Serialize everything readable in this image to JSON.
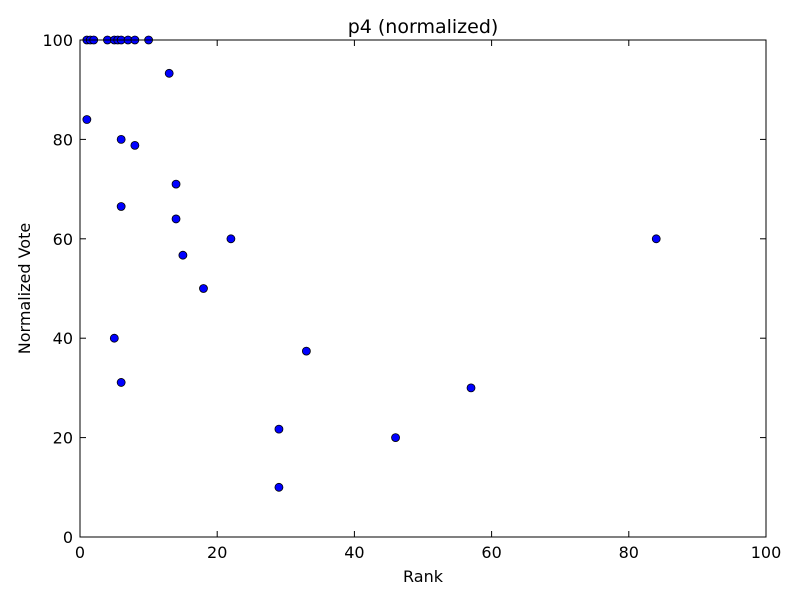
{
  "chart_data": {
    "type": "scatter",
    "title": "p4 (normalized)",
    "xlabel": "Rank",
    "ylabel": "Normalized Vote",
    "xlim": [
      0,
      100
    ],
    "ylim": [
      0,
      100
    ],
    "xticks": [
      "0",
      "20",
      "40",
      "60",
      "80",
      "100"
    ],
    "yticks": [
      "0",
      "20",
      "40",
      "60",
      "80",
      "100"
    ],
    "grid": false,
    "marker_color": "#0000ff",
    "marker_edge_color": "#000000",
    "points": [
      {
        "x": 1,
        "y": 100
      },
      {
        "x": 1.5,
        "y": 100
      },
      {
        "x": 2,
        "y": 100
      },
      {
        "x": 4,
        "y": 100
      },
      {
        "x": 5,
        "y": 100
      },
      {
        "x": 5.5,
        "y": 100
      },
      {
        "x": 6,
        "y": 100
      },
      {
        "x": 7,
        "y": 100
      },
      {
        "x": 8,
        "y": 100
      },
      {
        "x": 10,
        "y": 100
      },
      {
        "x": 13,
        "y": 93.3
      },
      {
        "x": 1,
        "y": 84
      },
      {
        "x": 6,
        "y": 80
      },
      {
        "x": 8,
        "y": 78.8
      },
      {
        "x": 14,
        "y": 71
      },
      {
        "x": 6,
        "y": 66.5
      },
      {
        "x": 14,
        "y": 64
      },
      {
        "x": 22,
        "y": 60
      },
      {
        "x": 84,
        "y": 60
      },
      {
        "x": 15,
        "y": 56.7
      },
      {
        "x": 18,
        "y": 50
      },
      {
        "x": 5,
        "y": 40
      },
      {
        "x": 33,
        "y": 37.4
      },
      {
        "x": 6,
        "y": 31.1
      },
      {
        "x": 57,
        "y": 30
      },
      {
        "x": 29,
        "y": 21.7
      },
      {
        "x": 46,
        "y": 20
      },
      {
        "x": 29,
        "y": 10
      }
    ]
  }
}
